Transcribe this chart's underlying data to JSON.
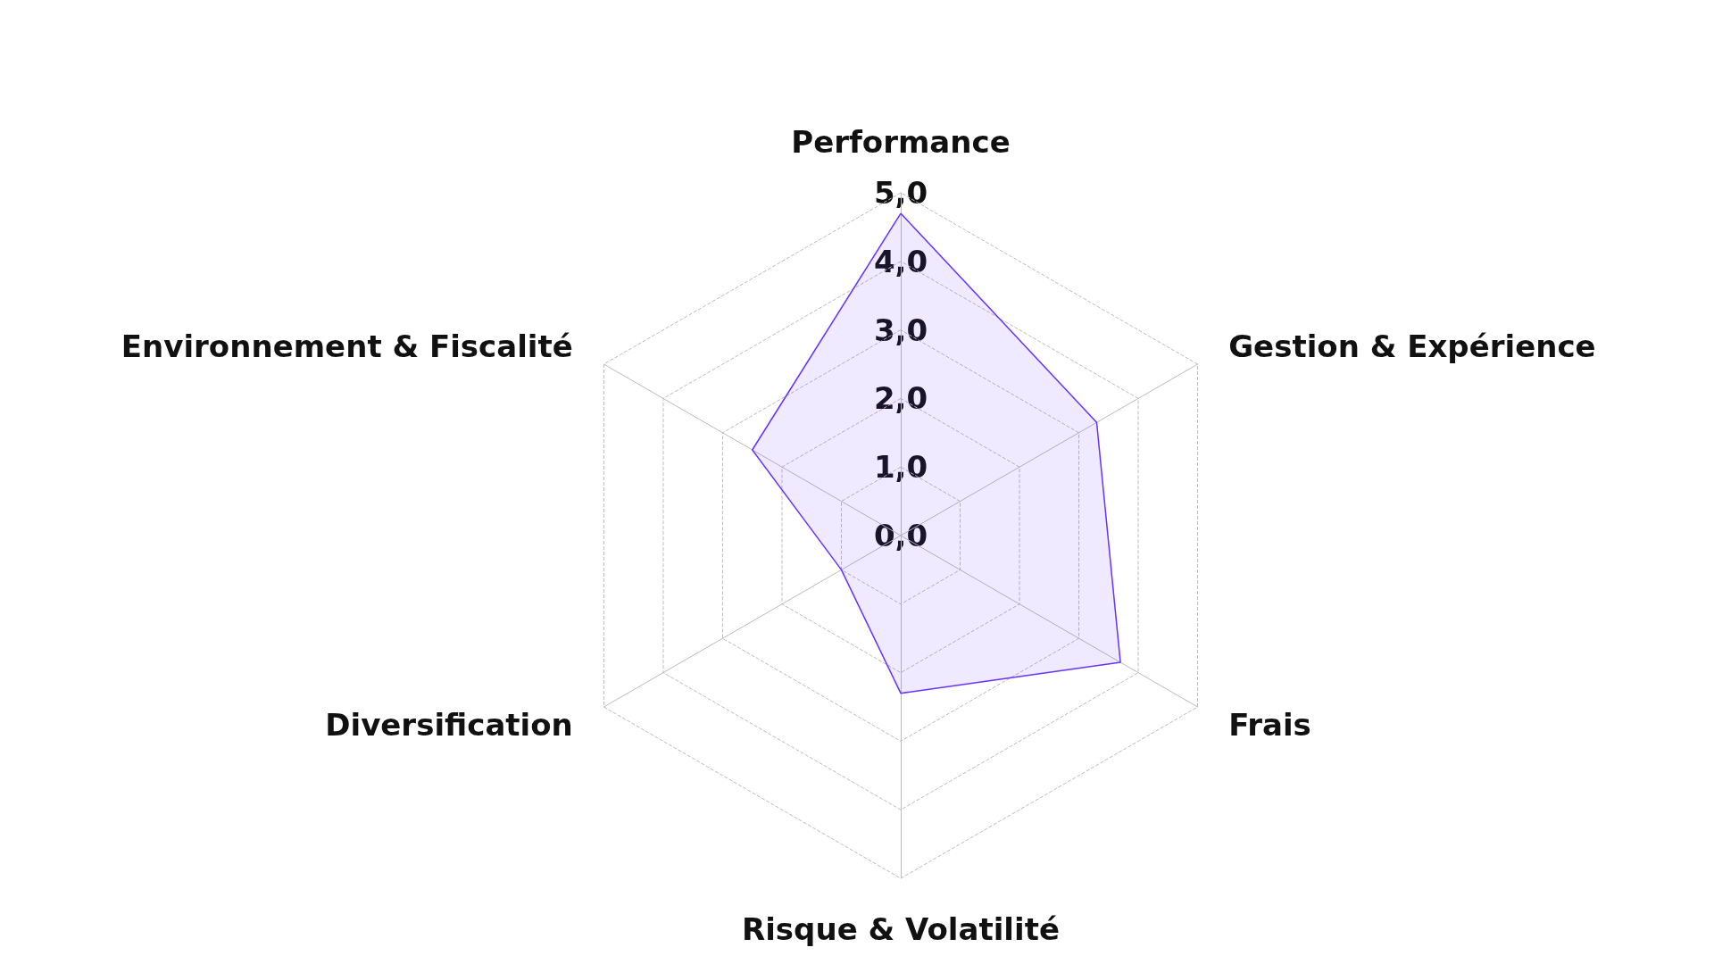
{
  "chart_data": {
    "type": "radar",
    "categories": [
      "Performance",
      "Gestion & Expérience",
      "Frais",
      "Risque & Volatilité",
      "Diversification",
      "Environnement & Fiscalité"
    ],
    "series": [
      {
        "color": "#6633ff",
        "values": [
          4.7,
          3.3,
          3.7,
          2.3,
          1.0,
          2.5
        ]
      }
    ],
    "ylim": [
      0,
      5
    ],
    "yticks": [
      {
        "value": 0,
        "label": "0,0"
      },
      {
        "value": 1,
        "label": "1,0"
      },
      {
        "value": 2,
        "label": "2,0"
      },
      {
        "value": 3,
        "label": "3,0"
      },
      {
        "value": 4,
        "label": "4,0"
      },
      {
        "value": 5,
        "label": "5,0"
      }
    ],
    "grid": true,
    "marker": "none",
    "line_style": "solid"
  }
}
